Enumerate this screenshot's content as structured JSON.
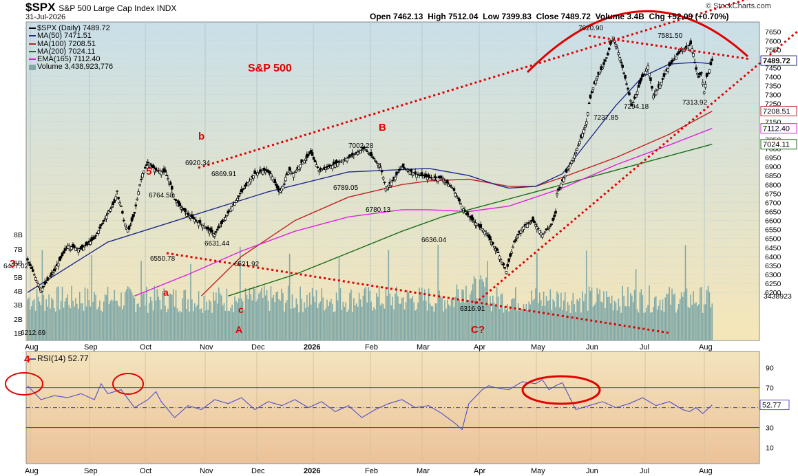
{
  "header": {
    "symbol": "$SPX",
    "description": "S&P 500 Large Cap Index INDX",
    "date": "31-Jul-2026",
    "open_label": "Open",
    "open": "7462.13",
    "high_label": "High",
    "high": "7512.04",
    "low_label": "Low",
    "low": "7399.83",
    "close_label": "Close",
    "close": "7489.72",
    "volume_label": "Volume",
    "volume": "3.4B",
    "chg_label": "Chg",
    "chg": "+52.09 (+0.70%)",
    "watermark": "© StockCharts.com"
  },
  "legend": [
    {
      "text": "$SPX (Daily) 7489.72",
      "color": "#000000"
    },
    {
      "text": "MA(50) 7471.51",
      "color": "#1f2a8a"
    },
    {
      "text": "MA(100) 7208.51",
      "color": "#c02020"
    },
    {
      "text": "MA(200) 7024.11",
      "color": "#1a6e1a"
    },
    {
      "text": "EMA(165) 7112.40",
      "color": "#e020e0"
    },
    {
      "text": "Volume 3,438,923,776",
      "color": "#5f9ea0"
    }
  ],
  "rsi_legend": "RSI(14) 52.77",
  "colors": {
    "up_candle": "#000000",
    "down_candle": "#000000",
    "ma50": "#1f2a8a",
    "ma100": "#c02020",
    "ma200": "#1a6e1a",
    "ema165": "#e020e0",
    "volume": "#7fa8a8",
    "rsi_line": "#5050c8",
    "annotation": "#e00000",
    "main_bg_top": "#c9dfe8",
    "main_bg_bottom": "#f5e6b8",
    "rsi_bg_top": "#f3e4bd",
    "rsi_bg_bottom": "#ecc29a"
  },
  "chart_data": [
    {
      "type": "candlestick",
      "title": "$SPX S&P 500 Large Cap Index INDX",
      "x_tick_labels": [
        "Aug",
        "Sep",
        "Oct",
        "Nov",
        "Dec",
        "2026",
        "Feb",
        "Mar",
        "Apr",
        "May",
        "Jun",
        "Jul",
        "Aug"
      ],
      "y_tick_labels": [
        "7650",
        "7600",
        "7550",
        "7500",
        "7450",
        "7400",
        "7350",
        "7300",
        "7250",
        "7200",
        "7150",
        "7100",
        "7050",
        "7000",
        "6950",
        "6900",
        "6850",
        "6800",
        "6750",
        "6700",
        "6650",
        "6600",
        "6550",
        "6500",
        "6450",
        "6400",
        "6350",
        "6300",
        "6250",
        "6200"
      ],
      "ylim": [
        6170,
        7680
      ],
      "volume_axis_labels": [
        "8B",
        "7B",
        "6B",
        "5B",
        "4B",
        "3B",
        "2B",
        "1B"
      ],
      "price_path_x": [
        0,
        5,
        10,
        20,
        30,
        40,
        50,
        60,
        65,
        67,
        68,
        70,
        72,
        74,
        76,
        80,
        82,
        84,
        86,
        90,
        96,
        103,
        107,
        110,
        114,
        120,
        130,
        140,
        150,
        160,
        166,
        170,
        177,
        182,
        188,
        192,
        193,
        196,
        199,
        205,
        209,
        212,
        214,
        218,
        226,
        240,
        252,
        264,
        268,
        274,
        280,
        290,
        300,
        310,
        318,
        328,
        342,
        352,
        358,
        364,
        370,
        378,
        385,
        392,
        395,
        396,
        400,
        405,
        410,
        414,
        418,
        420,
        423,
        426,
        430,
        434,
        436,
        438,
        441,
        444,
        448,
        452,
        456,
        460,
        464,
        468,
        472,
        476,
        480,
        484,
        488,
        492,
        496,
        498,
        499,
        500,
        502,
        504,
        506,
        508,
        510,
        512
      ],
      "price_path_y": [
        6380,
        6300,
        6212.69,
        6320,
        6460,
        6440,
        6500,
        6640,
        6700,
        6764.58,
        6720,
        6680,
        6600,
        6560,
        6550.78,
        6640,
        6720,
        6800,
        6860,
        6920.34,
        6880,
        6869.91,
        6800,
        6720,
        6680,
        6631.44,
        6580,
        6521.92,
        6640,
        6760,
        6820,
        6860,
        6880,
        6860,
        6760,
        6800,
        6840,
        6880,
        6860,
        6920,
        6950,
        6980,
        6940,
        6880,
        6900,
        6950,
        7002.28,
        6900,
        6780.13,
        6830,
        6900,
        6860,
        6840,
        6836,
        6780,
        6636.04,
        6540,
        6420,
        6316.91,
        6480,
        6560,
        6600,
        6520,
        6580,
        6640,
        6750,
        6820,
        6900,
        6980,
        7060,
        7150,
        7250,
        7340,
        7400,
        7450,
        7520,
        7580,
        7620.9,
        7560,
        7480,
        7360,
        7237.85,
        7320,
        7400,
        7460,
        7294.18,
        7340,
        7400,
        7460,
        7500,
        7540,
        7560,
        7581.5,
        7530,
        7480,
        7440,
        7400,
        7420,
        7315.92,
        7400,
        7440,
        7489.72
      ],
      "annotated_values": [
        {
          "label": "6427.02",
          "value": 6427.02
        },
        {
          "label": "6212.69",
          "value": 6212.69
        },
        {
          "label": "6764.58",
          "value": 6764.58
        },
        {
          "label": "6550.78",
          "value": 6550.78
        },
        {
          "label": "6920.34",
          "value": 6920.34
        },
        {
          "label": "6869.91",
          "value": 6869.91
        },
        {
          "label": "6631.44",
          "value": 6631.44
        },
        {
          "label": "6521.92",
          "value": 6521.92
        },
        {
          "label": "6789.05",
          "value": 6789.05
        },
        {
          "label": "7002.28",
          "value": 7002.28
        },
        {
          "label": "6780.13",
          "value": 6780.13
        },
        {
          "label": "6636.04",
          "value": 6636.04
        },
        {
          "label": "6316.91",
          "value": 6316.91
        },
        {
          "label": "7620.90",
          "value": 7620.9
        },
        {
          "label": "7237.85",
          "value": 7237.85
        },
        {
          "label": "7294.18",
          "value": 7294.18
        },
        {
          "label": "7581.50",
          "value": 7581.5
        },
        {
          "label": "7313.92",
          "value": 7313.92
        }
      ],
      "ma50": {
        "name": "MA(50)",
        "last": 7471.51,
        "x": [
          0,
          60,
          120,
          180,
          240,
          300,
          330,
          350,
          360,
          380,
          400,
          420,
          440,
          460,
          480,
          500,
          512
        ],
        "y": [
          6200,
          6480,
          6620,
          6760,
          6870,
          6890,
          6850,
          6800,
          6780,
          6790,
          6860,
          7050,
          7240,
          7400,
          7470,
          7480,
          7471.51
        ]
      },
      "ma100": {
        "name": "MA(100)",
        "last": 7208.51,
        "x": [
          130,
          160,
          200,
          240,
          280,
          300,
          330,
          360,
          380,
          400,
          440,
          480,
          512
        ],
        "y": [
          6180,
          6400,
          6600,
          6730,
          6800,
          6820,
          6830,
          6790,
          6790,
          6840,
          6950,
          7080,
          7208.51
        ]
      },
      "ma200": {
        "name": "MA(200)",
        "last": 7024.11,
        "x": [
          150,
          200,
          240,
          280,
          310,
          340,
          380,
          420,
          460,
          512
        ],
        "y": [
          6180,
          6300,
          6420,
          6540,
          6620,
          6680,
          6760,
          6840,
          6920,
          7024.11
        ]
      },
      "ema165": {
        "name": "EMA(165)",
        "last": 7112.4,
        "x": [
          80,
          120,
          160,
          200,
          240,
          280,
          300,
          330,
          360,
          400,
          440,
          480,
          512
        ],
        "y": [
          6180,
          6300,
          6430,
          6540,
          6620,
          6660,
          6660,
          6650,
          6680,
          6780,
          6910,
          7020,
          7112.4
        ]
      },
      "volume_last": "3438923",
      "right_axis_tags": [
        {
          "label": "7489.72",
          "value": 7489.72
        },
        {
          "label": "7208.51",
          "value": 7208.51
        },
        {
          "label": "7112.40",
          "value": 7112.4
        },
        {
          "label": "7024.11",
          "value": 7024.11
        }
      ],
      "annotations": [
        {
          "text": "S&P 500"
        },
        {
          "text": "5"
        },
        {
          "text": "b"
        },
        {
          "text": "B"
        },
        {
          "text": "a"
        },
        {
          "text": "c"
        },
        {
          "text": "A"
        },
        {
          "text": "C?"
        },
        {
          "text": "3"
        },
        {
          "text": "4"
        }
      ]
    },
    {
      "type": "line",
      "title": "RSI(14) 52.77",
      "y_tick_labels": [
        "90",
        "70",
        "30",
        "10"
      ],
      "ylim": [
        0,
        100
      ],
      "reference_lines": [
        70,
        50,
        30
      ],
      "last_label": "52.77",
      "last": 52.77,
      "x": [
        0,
        10,
        20,
        30,
        40,
        50,
        55,
        60,
        70,
        80,
        90,
        96,
        100,
        110,
        120,
        130,
        140,
        150,
        160,
        170,
        180,
        190,
        200,
        210,
        220,
        230,
        240,
        250,
        260,
        270,
        280,
        290,
        300,
        310,
        320,
        325,
        330,
        340,
        345,
        350,
        360,
        370,
        380,
        385,
        390,
        395,
        400,
        410,
        420,
        430,
        440,
        450,
        460,
        470,
        480,
        490,
        495,
        500,
        505,
        512
      ],
      "y": [
        72,
        58,
        62,
        60,
        64,
        58,
        74,
        64,
        68,
        50,
        58,
        66,
        56,
        40,
        52,
        48,
        58,
        54,
        60,
        48,
        56,
        52,
        58,
        50,
        56,
        46,
        52,
        40,
        48,
        54,
        58,
        50,
        52,
        44,
        34,
        28,
        54,
        68,
        72,
        70,
        68,
        76,
        74,
        78,
        68,
        72,
        75,
        48,
        52,
        56,
        50,
        54,
        60,
        52,
        56,
        48,
        46,
        50,
        44,
        52.77
      ]
    }
  ]
}
